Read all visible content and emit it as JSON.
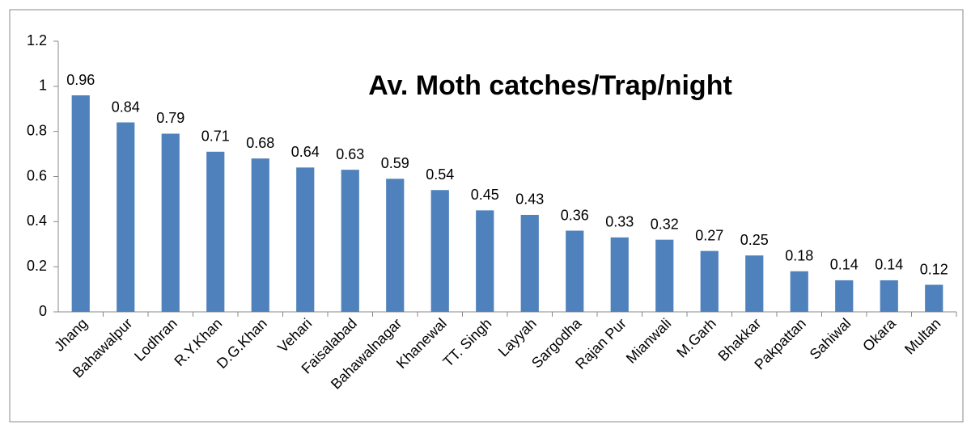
{
  "chart_data": {
    "type": "bar",
    "title": "Av. Moth catches/Trap/night",
    "categories": [
      "Jhang",
      "Bahawalpur",
      "Lodhran",
      "R.Y.Khan",
      "D.G.Khan",
      "Vehari",
      "Faisalabad",
      "Bahawalnagar",
      "Khanewal",
      "TT. Singh",
      "Layyah",
      "Sargodha",
      "Rajan Pur",
      "Mianwali",
      "M.Garh",
      "Bhakkar",
      "Pakpattan",
      "Sahiwal",
      "Okara",
      "Multan"
    ],
    "values": [
      0.96,
      0.84,
      0.79,
      0.71,
      0.68,
      0.64,
      0.63,
      0.59,
      0.54,
      0.45,
      0.43,
      0.36,
      0.33,
      0.32,
      0.27,
      0.25,
      0.18,
      0.14,
      0.14,
      0.12
    ],
    "color": "#4f81bd",
    "ylim": [
      0,
      1.2
    ],
    "yticks": [
      0,
      0.2,
      0.4,
      0.6,
      0.8,
      1,
      1.2
    ],
    "grid": false
  }
}
